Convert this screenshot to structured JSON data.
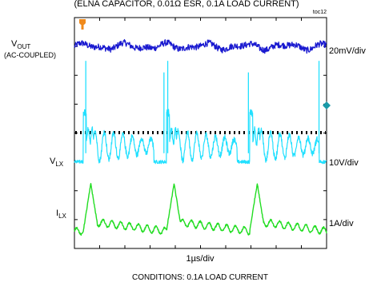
{
  "top_title": "(ELNA CAPACITOR, 0.01Ω ESR, 0.1A LOAD CURRENT)",
  "figure_id": "toc12",
  "marker_icon": "trigger-marker-icon",
  "channel_labels": {
    "vout": {
      "main": "V",
      "sub": "OUT",
      "note": "(AC-COUPLED)",
      "scale": "20mV/div",
      "color": "#1a1ad0"
    },
    "vlx": {
      "main": "V",
      "sub": "LX",
      "scale": "10V/div",
      "color": "#22e0ff"
    },
    "ilx": {
      "main": "I",
      "sub": "LX",
      "scale": "1A/div",
      "color": "#22dd22"
    }
  },
  "time_scale": "1µs/div",
  "conditions": "CONDITIONS: 0.1A LOAD CURRENT",
  "chart_data": {
    "type": "line",
    "title": "",
    "xlabel": "1µs/div",
    "ylabel": "",
    "x_divisions": 10,
    "y_divisions": 8,
    "grid": false,
    "switching_bursts_us": [
      0.35,
      3.65,
      6.95
    ],
    "series": [
      {
        "name": "VOUT (AC-COUPLED)",
        "scale": "20mV/div",
        "color": "#1a1ad0",
        "kind": "ripple_noise",
        "baseline_div": 7.0,
        "peak_to_peak_mV": 20
      },
      {
        "name": "VLX",
        "scale": "10V/div",
        "color": "#22e0ff",
        "kind": "switch_node",
        "baseline_div": 3.0,
        "high_div": 4.7,
        "spike_div": 6.5
      },
      {
        "name": "ILX",
        "scale": "1A/div",
        "color": "#22dd22",
        "kind": "inductor_current",
        "x": [
          0.35,
          0.65,
          0.9,
          3.65,
          3.95,
          4.2,
          6.95,
          7.25,
          7.5,
          10.0
        ],
        "y": [
          0.6,
          2.25,
          0.9,
          0.6,
          2.25,
          0.9,
          0.6,
          2.25,
          0.9,
          0.6
        ]
      }
    ]
  }
}
